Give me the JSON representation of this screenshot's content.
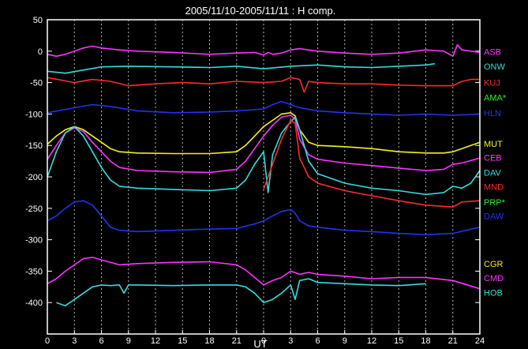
{
  "chart_data": {
    "type": "line",
    "title": "2005/11/10-2005/11/11 : H comp.",
    "xlabel": "UT",
    "ylabel": "",
    "xlim": [
      0,
      48
    ],
    "ylim": [
      -450,
      50
    ],
    "grid": true,
    "x_ticks": [
      0,
      3,
      6,
      9,
      12,
      15,
      18,
      21,
      24,
      27,
      30,
      33,
      36,
      39,
      42,
      45,
      48
    ],
    "x_tick_labels": [
      "0",
      "3",
      "6",
      "9",
      "12",
      "15",
      "18",
      "21",
      "0",
      "3",
      "6",
      "9",
      "12",
      "15",
      "18",
      "21",
      "24"
    ],
    "y_ticks": [
      50,
      0,
      -50,
      -100,
      -150,
      -200,
      -250,
      -300,
      -350,
      -400
    ],
    "y_tick_labels": [
      "50",
      "0",
      "-50",
      "-100",
      "-150",
      "-200",
      "-250",
      "-300",
      "-350",
      "-400"
    ],
    "series": [
      {
        "name": "ASB",
        "color": "#ff33ff",
        "label_y": -1,
        "x": [
          0,
          1,
          2,
          3,
          4,
          5,
          6,
          8,
          10,
          14,
          18,
          21,
          23,
          24,
          24.5,
          25,
          26,
          27,
          28,
          30,
          33,
          36,
          39,
          42,
          44,
          45,
          45.5,
          46,
          48
        ],
        "y": [
          -5,
          -8,
          -5,
          0,
          5,
          8,
          5,
          2,
          0,
          -2,
          -5,
          -3,
          -2,
          -6,
          -2,
          -5,
          -3,
          2,
          4,
          0,
          -3,
          -5,
          -3,
          2,
          0,
          -8,
          10,
          2,
          -2
        ]
      },
      {
        "name": "ONW",
        "color": "#33dddd",
        "label_y": -24,
        "x": [
          0,
          2,
          4,
          6,
          9,
          14,
          18,
          21,
          24,
          27,
          30,
          33,
          36,
          39,
          42,
          43
        ],
        "y": [
          -32,
          -35,
          -30,
          -25,
          -24,
          -25,
          -26,
          -24,
          -28,
          -24,
          -22,
          -25,
          -26,
          -24,
          -22,
          -20
        ]
      },
      {
        "name": "KUJ",
        "color": "#ff2a2a",
        "label_y": -50,
        "x": [
          0,
          3,
          5,
          7,
          9,
          12,
          15,
          18,
          21,
          24,
          26,
          27,
          28,
          28.5,
          29,
          30,
          33,
          36,
          39,
          42,
          45,
          46,
          47,
          48
        ],
        "y": [
          -42,
          -50,
          -45,
          -48,
          -55,
          -52,
          -50,
          -52,
          -48,
          -50,
          -48,
          -42,
          -45,
          -65,
          -48,
          -50,
          -52,
          -52,
          -54,
          -55,
          -55,
          -48,
          -45,
          -45
        ]
      },
      {
        "name": "AMA*",
        "color": "#33ee33",
        "label_y": -74,
        "x": [],
        "y": []
      },
      {
        "name": "HLN",
        "color": "#2233ee",
        "label_y": -98,
        "x": [
          0,
          3,
          5,
          7,
          10,
          14,
          18,
          21,
          24,
          25,
          26,
          28,
          30,
          33,
          36,
          39,
          42,
          45,
          48
        ],
        "y": [
          -98,
          -90,
          -85,
          -88,
          -95,
          -98,
          -97,
          -95,
          -92,
          -85,
          -80,
          -90,
          -95,
          -98,
          -100,
          -102,
          -100,
          -102,
          -100
        ]
      },
      {
        "name": "MUT",
        "color": "#f2f21e",
        "label_y": -147,
        "x": [
          0,
          1,
          2,
          3,
          4,
          5,
          6,
          7,
          8,
          10,
          14,
          18,
          21,
          22,
          23,
          24,
          25,
          26,
          27,
          27.5,
          28,
          29,
          30,
          33,
          36,
          39,
          42,
          44,
          45,
          46,
          48
        ],
        "y": [
          -148,
          -135,
          -125,
          -120,
          -125,
          -135,
          -145,
          -155,
          -160,
          -162,
          -163,
          -163,
          -160,
          -150,
          -135,
          -120,
          -110,
          -100,
          -98,
          -103,
          -125,
          -145,
          -150,
          -152,
          -155,
          -160,
          -162,
          -162,
          -160,
          -155,
          -145
        ]
      },
      {
        "name": "CEB",
        "color": "#ff33ff",
        "label_y": -169,
        "x": [
          0,
          1,
          2,
          3,
          4,
          5,
          6,
          7,
          8,
          10,
          14,
          18,
          21,
          22,
          23,
          24,
          25,
          26,
          27,
          27.5,
          28,
          29,
          30,
          33,
          36,
          39,
          42,
          44,
          45,
          46,
          48
        ],
        "y": [
          -172,
          -150,
          -130,
          -122,
          -128,
          -145,
          -160,
          -175,
          -185,
          -190,
          -192,
          -193,
          -188,
          -175,
          -155,
          -135,
          -118,
          -105,
          -102,
          -108,
          -140,
          -165,
          -172,
          -178,
          -182,
          -186,
          -190,
          -188,
          -180,
          -178,
          -170
        ]
      },
      {
        "name": "DAV",
        "color": "#33dddd",
        "label_y": -193,
        "x": [
          0,
          1,
          2,
          3,
          4,
          5,
          6,
          7,
          8,
          10,
          14,
          18,
          21,
          22,
          23,
          24,
          24.5,
          25,
          26,
          27,
          27.5,
          28,
          29,
          30,
          33,
          36,
          39,
          42,
          44,
          45,
          46,
          47,
          48
        ],
        "y": [
          -200,
          -160,
          -130,
          -120,
          -135,
          -160,
          -185,
          -205,
          -215,
          -218,
          -220,
          -222,
          -218,
          -205,
          -180,
          -160,
          -225,
          -165,
          -130,
          -112,
          -105,
          -125,
          -175,
          -195,
          -210,
          -218,
          -222,
          -228,
          -225,
          -215,
          -218,
          -210,
          -190
        ]
      },
      {
        "name": "MND",
        "color": "#ff2a2a",
        "label_y": -216,
        "x": [
          24,
          25,
          26,
          27,
          27.5,
          28,
          29,
          30,
          33,
          36,
          39,
          42,
          45,
          46,
          48
        ],
        "y": [
          -220,
          -180,
          -140,
          -110,
          -115,
          -170,
          -200,
          -210,
          -222,
          -230,
          -238,
          -245,
          -248,
          -240,
          -238
        ]
      },
      {
        "name": "PRP*",
        "color": "#33ee33",
        "label_y": -240,
        "x": [],
        "y": []
      },
      {
        "name": "DAW",
        "color": "#2233ee",
        "label_y": -262,
        "x": [
          0,
          1,
          2,
          3,
          4,
          5,
          6,
          7,
          8,
          10,
          14,
          18,
          21,
          23,
          24,
          25,
          26,
          27,
          27.5,
          28,
          29,
          30,
          33,
          36,
          39,
          42,
          45,
          48
        ],
        "y": [
          -270,
          -262,
          -250,
          -240,
          -238,
          -245,
          -262,
          -280,
          -285,
          -287,
          -285,
          -283,
          -282,
          -275,
          -270,
          -262,
          -255,
          -252,
          -258,
          -270,
          -278,
          -280,
          -285,
          -287,
          -290,
          -292,
          -290,
          -280
        ]
      },
      {
        "name": "CGR",
        "color": "#f2f21e",
        "label_y": -338,
        "x": [],
        "y": []
      },
      {
        "name": "CMD",
        "color": "#ff33ff",
        "label_y": -361,
        "x": [
          0,
          1,
          2,
          3,
          4,
          5,
          6,
          8,
          10,
          14,
          18,
          21,
          22,
          23,
          24,
          25,
          26,
          27,
          28,
          29,
          30,
          33,
          36,
          39,
          42,
          45,
          48
        ],
        "y": [
          -370,
          -362,
          -350,
          -340,
          -330,
          -328,
          -332,
          -340,
          -338,
          -336,
          -335,
          -340,
          -348,
          -360,
          -372,
          -365,
          -360,
          -350,
          -355,
          -352,
          -355,
          -358,
          -362,
          -360,
          -360,
          -365,
          -378
        ]
      },
      {
        "name": "HOB",
        "color": "#33dddd",
        "label_y": -384,
        "x": [
          1,
          2,
          3,
          4,
          5,
          6,
          7,
          8,
          8.5,
          9,
          10,
          14,
          18,
          21,
          22,
          23,
          24,
          25,
          26,
          27,
          27.5,
          28,
          29,
          30,
          33,
          36,
          39,
          42
        ],
        "y": [
          -400,
          -405,
          -395,
          -385,
          -375,
          -372,
          -373,
          -372,
          -385,
          -372,
          -372,
          -373,
          -372,
          -372,
          -375,
          -385,
          -400,
          -395,
          -385,
          -372,
          -395,
          -365,
          -362,
          -368,
          -370,
          -372,
          -373,
          -370
        ]
      }
    ]
  }
}
